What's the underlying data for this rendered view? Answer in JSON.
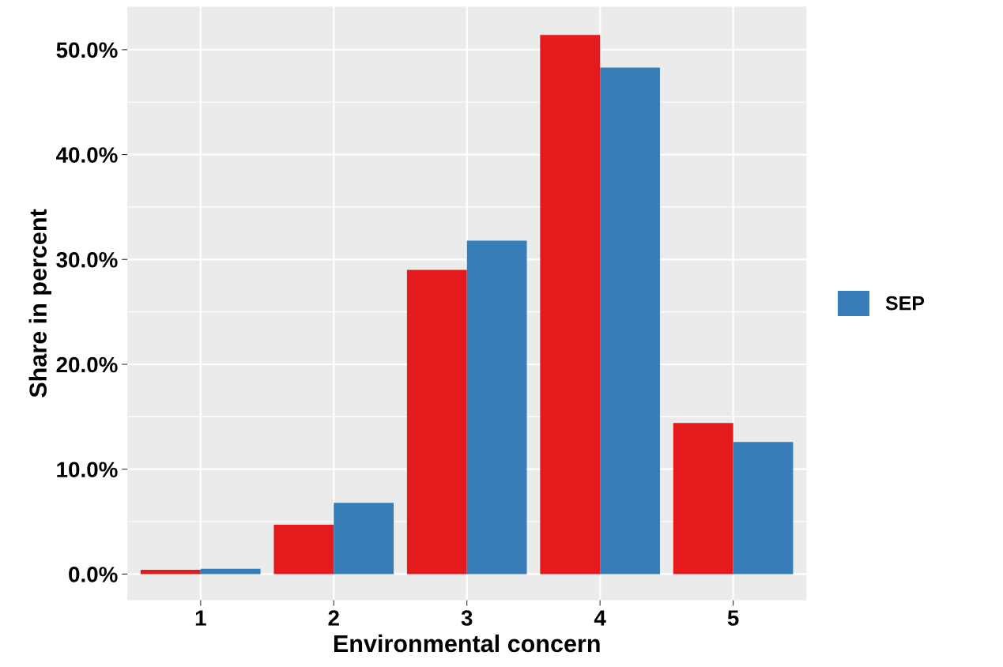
{
  "chart_data": {
    "type": "bar",
    "xlabel": "Environmental concern",
    "ylabel": "Share in percent",
    "categories": [
      "1",
      "2",
      "3",
      "4",
      "5"
    ],
    "series": [
      {
        "color": "#e41a1c",
        "values": [
          0.4,
          4.7,
          29.0,
          51.4,
          14.4
        ]
      },
      {
        "name": "SEP",
        "color": "#377eb8",
        "values": [
          0.5,
          6.8,
          31.8,
          48.3,
          12.6
        ]
      }
    ],
    "ylim": [
      -2.5,
      54.1
    ],
    "yticks": [
      {
        "value": 0,
        "label": "0.0%"
      },
      {
        "value": 10,
        "label": "10.0%"
      },
      {
        "value": 20,
        "label": "20.0%"
      },
      {
        "value": 30,
        "label": "30.0%"
      },
      {
        "value": 40,
        "label": "40.0%"
      },
      {
        "value": 50,
        "label": "50.0%"
      }
    ],
    "grid": true,
    "legend": "right"
  }
}
